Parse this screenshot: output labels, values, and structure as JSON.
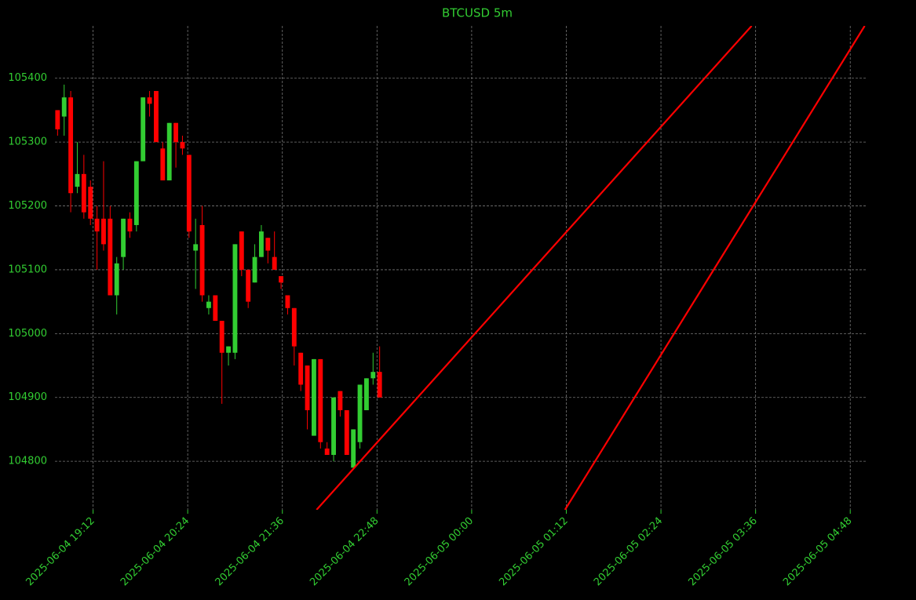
{
  "chart_data": {
    "type": "candlestick",
    "title": "BTCUSD 5m",
    "up_color": "#32cd32",
    "down_color": "#ff0000",
    "grid": true,
    "xlim": [
      "2025-06-04 18:43",
      "2025-06-05 05:01"
    ],
    "xticks": [
      "2025-06-04 19:12",
      "2025-06-04 20:24",
      "2025-06-04 21:36",
      "2025-06-04 22:48",
      "2025-06-05 00:00",
      "2025-06-05 01:12",
      "2025-06-05 02:24",
      "2025-06-05 03:36",
      "2025-06-05 04:48"
    ],
    "ylim": [
      104724,
      105482
    ],
    "yticks": [
      104800,
      104900,
      105000,
      105100,
      105200,
      105300,
      105400
    ],
    "x": [
      "2025-06-04 18:45",
      "2025-06-04 18:50",
      "2025-06-04 18:55",
      "2025-06-04 19:00",
      "2025-06-04 19:05",
      "2025-06-04 19:10",
      "2025-06-04 19:15",
      "2025-06-04 19:20",
      "2025-06-04 19:25",
      "2025-06-04 19:30",
      "2025-06-04 19:35",
      "2025-06-04 19:40",
      "2025-06-04 19:45",
      "2025-06-04 19:50",
      "2025-06-04 19:55",
      "2025-06-04 20:00",
      "2025-06-04 20:05",
      "2025-06-04 20:10",
      "2025-06-04 20:15",
      "2025-06-04 20:20",
      "2025-06-04 20:25",
      "2025-06-04 20:30",
      "2025-06-04 20:35",
      "2025-06-04 20:40",
      "2025-06-04 20:45",
      "2025-06-04 20:50",
      "2025-06-04 20:55",
      "2025-06-04 21:00",
      "2025-06-04 21:05",
      "2025-06-04 21:10",
      "2025-06-04 21:15",
      "2025-06-04 21:20",
      "2025-06-04 21:25",
      "2025-06-04 21:30",
      "2025-06-04 21:35",
      "2025-06-04 21:40",
      "2025-06-04 21:45",
      "2025-06-04 21:50",
      "2025-06-04 21:55",
      "2025-06-04 22:00",
      "2025-06-04 22:05",
      "2025-06-04 22:10",
      "2025-06-04 22:15",
      "2025-06-04 22:20",
      "2025-06-04 22:25",
      "2025-06-04 22:30",
      "2025-06-04 22:35",
      "2025-06-04 22:40",
      "2025-06-04 22:45",
      "2025-06-04 22:50"
    ],
    "open": [
      105350,
      105340,
      105370,
      105230,
      105250,
      105230,
      105180,
      105180,
      105180,
      105060,
      105120,
      105180,
      105170,
      105270,
      105370,
      105380,
      105290,
      105240,
      105330,
      105300,
      105280,
      105130,
      105170,
      105040,
      105060,
      105020,
      104970,
      104970,
      105160,
      105100,
      105080,
      105120,
      105150,
      105120,
      105090,
      105060,
      105040,
      104970,
      104950,
      104840,
      104960,
      104820,
      104810,
      104910,
      104880,
      104790,
      104830,
      104880,
      104930,
      104940
    ],
    "high": [
      105350,
      105390,
      105380,
      105300,
      105280,
      105240,
      105200,
      105270,
      105200,
      105120,
      105180,
      105190,
      105270,
      105370,
      105380,
      105380,
      105300,
      105330,
      105330,
      105310,
      105280,
      105180,
      105200,
      105060,
      105060,
      105020,
      104980,
      105140,
      105160,
      105100,
      105140,
      105170,
      105150,
      105160,
      105090,
      105060,
      105040,
      104970,
      104950,
      104960,
      104960,
      104830,
      104900,
      104910,
      104880,
      104850,
      104920,
      104930,
      104970,
      104980
    ],
    "low": [
      105310,
      105310,
      105190,
      105220,
      105180,
      105170,
      105100,
      105130,
      105060,
      105030,
      105100,
      105150,
      105160,
      105270,
      105340,
      105300,
      105240,
      105240,
      105260,
      105280,
      105150,
      105070,
      105050,
      105030,
      105020,
      104890,
      104950,
      104960,
      105090,
      105040,
      105080,
      105120,
      105110,
      105100,
      105070,
      105030,
      104950,
      104910,
      104850,
      104840,
      104820,
      104810,
      104800,
      104870,
      104810,
      104790,
      104820,
      104880,
      104920,
      104900
    ],
    "close": [
      105320,
      105370,
      105220,
      105250,
      105190,
      105180,
      105160,
      105140,
      105060,
      105110,
      105180,
      105160,
      105270,
      105370,
      105360,
      105300,
      105240,
      105330,
      105300,
      105290,
      105160,
      105140,
      105060,
      105050,
      105020,
      104970,
      104980,
      105140,
      105100,
      105050,
      105120,
      105160,
      105130,
      105100,
      105080,
      105040,
      104980,
      104920,
      104880,
      104960,
      104830,
      104810,
      104900,
      104880,
      104810,
      104850,
      104920,
      104930,
      104940,
      104900
    ],
    "lines": [
      {
        "color": "#ff0000",
        "x": [
          "2025-06-04 22:02",
          "2025-06-05 03:33"
        ],
        "y": [
          104724,
          105482
        ]
      },
      {
        "color": "#ff0000",
        "x": [
          "2025-06-05 01:11",
          "2025-06-05 04:59"
        ],
        "y": [
          104724,
          105482
        ]
      }
    ]
  }
}
